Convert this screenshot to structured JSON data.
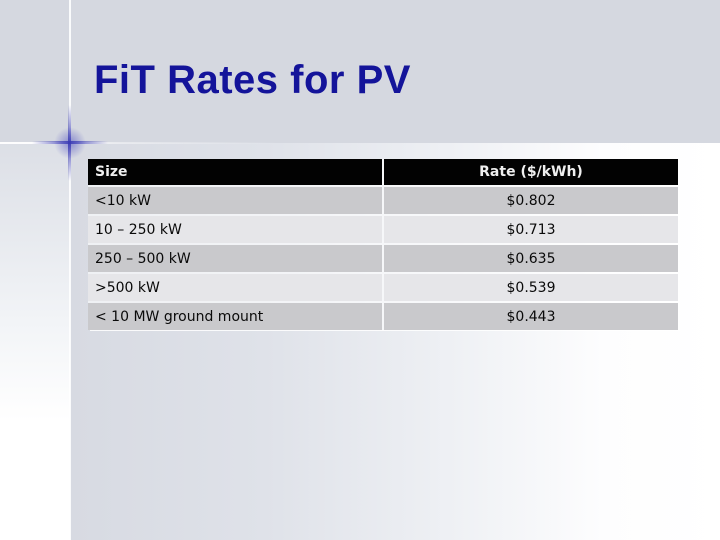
{
  "slide": {
    "title": "FiT Rates for PV"
  },
  "table": {
    "headers": [
      "Size",
      "Rate ($/kWh)"
    ],
    "rows": [
      {
        "size": "<10 kW",
        "rate": "$0.802"
      },
      {
        "size": "10 – 250 kW",
        "rate": "$0.713"
      },
      {
        "size": "250 – 500 kW",
        "rate": "$0.635"
      },
      {
        "size": ">500 kW",
        "rate": "$0.539"
      },
      {
        "size": "< 10 MW ground mount",
        "rate": "$0.443"
      }
    ]
  },
  "chart_data": {
    "type": "table",
    "title": "FiT Rates for PV",
    "columns": [
      "Size",
      "Rate ($/kWh)"
    ],
    "categories": [
      "<10 kW",
      "10 – 250 kW",
      "250 – 500 kW",
      ">500 kW",
      "< 10 MW ground mount"
    ],
    "values": [
      0.802,
      0.713,
      0.635,
      0.539,
      0.443
    ]
  },
  "colors": {
    "title_navy": "#14149a",
    "background": "#d5d8e0",
    "header_bg": "#020202",
    "header_text": "#efefef",
    "row_dark": "#c9c9cc",
    "row_light": "#e6e6e9",
    "cross_blue": "#3b3bb4"
  }
}
